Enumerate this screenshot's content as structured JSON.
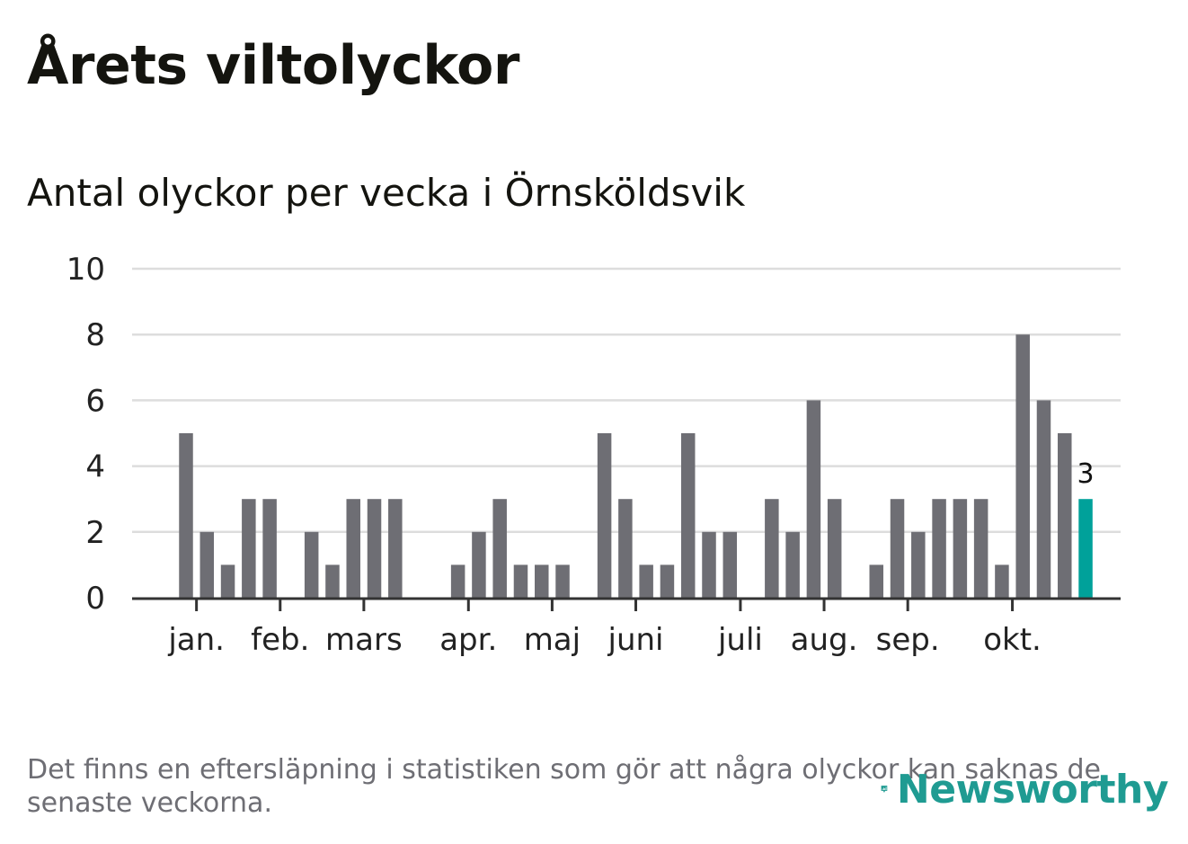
{
  "title": "Årets viltolyckor",
  "chart_data": {
    "type": "bar",
    "title": "Antal olyckor per vecka i Örnsköldsvik",
    "xlabel": "",
    "ylabel": "",
    "ylim": [
      0,
      10
    ],
    "yticks": [
      "0",
      "2",
      "4",
      "6",
      "8",
      "10"
    ],
    "grid": true,
    "weeks": [
      1,
      2,
      3,
      4,
      5,
      6,
      7,
      8,
      9,
      10,
      11,
      12,
      13,
      14,
      15,
      16,
      17,
      18,
      19,
      20,
      21,
      22,
      23,
      24,
      25,
      26,
      27,
      28,
      29,
      30,
      31,
      32,
      33,
      34,
      35,
      36,
      37,
      38,
      39,
      40,
      41,
      42,
      43,
      44,
      45,
      46,
      47,
      48,
      49,
      50,
      51,
      52,
      53
    ],
    "series": [
      {
        "name": "Antal olyckor",
        "values": [
          5,
          2,
          1,
          3,
          3,
          0,
          2,
          1,
          3,
          3,
          3,
          0,
          0,
          1,
          2,
          3,
          1,
          1,
          1,
          0,
          5,
          3,
          1,
          1,
          5,
          2,
          2,
          0,
          3,
          2,
          6,
          3,
          0,
          1,
          3,
          2,
          3,
          3,
          3,
          1,
          8,
          6,
          5,
          3
        ]
      }
    ],
    "highlight_last": true,
    "highlight_label": "3",
    "colors": {
      "bar": "#6e6e74",
      "highlight": "#00a19a",
      "grid": "#dddddd",
      "axis": "#333333"
    },
    "month_ticks": [
      {
        "label": "jan.",
        "pos": 0.5
      },
      {
        "label": "feb.",
        "pos": 4.5
      },
      {
        "label": "mars",
        "pos": 8.5
      },
      {
        "label": "apr.",
        "pos": 13.5
      },
      {
        "label": "maj",
        "pos": 17.5
      },
      {
        "label": "juni",
        "pos": 21.5
      },
      {
        "label": "juli",
        "pos": 26.5
      },
      {
        "label": "aug.",
        "pos": 30.5
      },
      {
        "label": "sep.",
        "pos": 34.5
      },
      {
        "label": "okt.",
        "pos": 39.5
      }
    ]
  },
  "footnote": "Det finns en eftersläpning i statistiken som gör att några olyckor kan saknas de senaste veckorna.",
  "logo": {
    "text": "Newsworthy",
    "icon": "newsworthy-logo-icon",
    "color": "#1f9b92"
  }
}
